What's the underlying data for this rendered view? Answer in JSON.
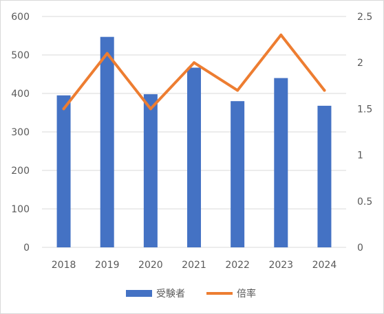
{
  "chart_data": {
    "type": "bar+line",
    "categories": [
      "2018",
      "2019",
      "2020",
      "2021",
      "2022",
      "2023",
      "2024"
    ],
    "series": [
      {
        "name": "受験者",
        "type": "bar",
        "axis": "left",
        "color": "#4472c4",
        "values": [
          395,
          547,
          398,
          467,
          380,
          440,
          368
        ]
      },
      {
        "name": "倍率",
        "type": "line",
        "axis": "right",
        "color": "#ed7d31",
        "values": [
          1.5,
          2.1,
          1.5,
          2.0,
          1.7,
          2.3,
          1.7
        ]
      }
    ],
    "y_left": {
      "min": 0,
      "max": 600,
      "ticks": [
        "0",
        "100",
        "200",
        "300",
        "400",
        "500",
        "600"
      ]
    },
    "y_right": {
      "min": 0,
      "max": 2.5,
      "ticks": [
        "0",
        "0.5",
        "1",
        "1.5",
        "2",
        "2.5"
      ]
    },
    "grid": true,
    "legend": {
      "position": "bottom"
    }
  }
}
